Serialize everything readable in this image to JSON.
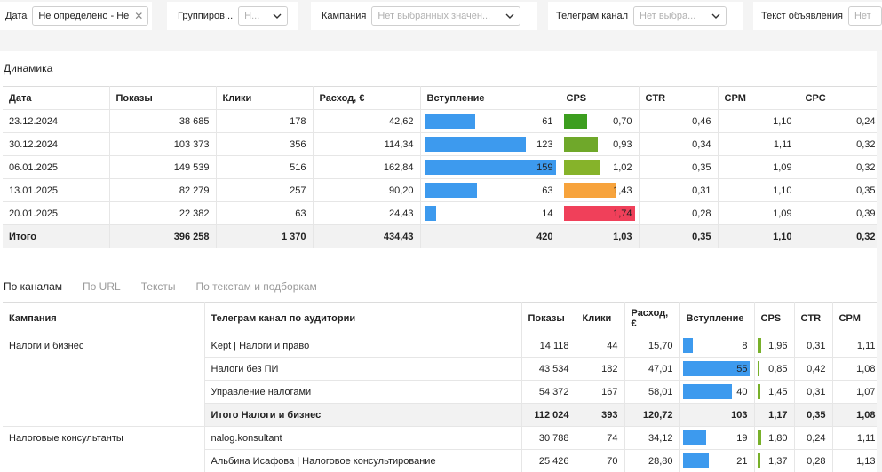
{
  "filters": {
    "date": {
      "label": "Дата",
      "value": "Не определено - Не"
    },
    "grouping": {
      "label": "Группиров...",
      "value": "Н..."
    },
    "campaign": {
      "label": "Кампания",
      "placeholder": "Нет выбранных значен..."
    },
    "telegram": {
      "label": "Телеграм канал",
      "placeholder": "Нет выбра..."
    },
    "adtext": {
      "label": "Текст объявления",
      "placeholder": "Нет"
    }
  },
  "dynamics": {
    "title": "Динамика",
    "headers": [
      "Дата",
      "Показы",
      "Клики",
      "Расход, €",
      "Вступление",
      "CPS",
      "CTR",
      "CPM",
      "CPC"
    ],
    "rows": [
      {
        "date": "23.12.2024",
        "shows": "38 685",
        "clicks": "178",
        "spend": "42,62",
        "joins": "61",
        "joins_value": 61,
        "cps": "0,70",
        "cps_color": "#3c9e1f",
        "cps_fill": 0.33,
        "ctr": "0,46",
        "cpm": "1,10",
        "cpc": "0,24"
      },
      {
        "date": "30.12.2024",
        "shows": "103 373",
        "clicks": "356",
        "spend": "114,34",
        "joins": "123",
        "joins_value": 123,
        "cps": "0,93",
        "cps_color": "#6fa82a",
        "cps_fill": 0.47,
        "ctr": "0,34",
        "cpm": "1,11",
        "cpc": "0,32"
      },
      {
        "date": "06.01.2025",
        "shows": "149 539",
        "clicks": "516",
        "spend": "162,84",
        "joins": "159",
        "joins_value": 159,
        "cps": "1,02",
        "cps_color": "#86b32a",
        "cps_fill": 0.51,
        "ctr": "0,35",
        "cpm": "1,09",
        "cpc": "0,32"
      },
      {
        "date": "13.01.2025",
        "shows": "82 279",
        "clicks": "257",
        "spend": "90,20",
        "joins": "63",
        "joins_value": 63,
        "cps": "1,43",
        "cps_color": "#f7a33c",
        "cps_fill": 0.74,
        "ctr": "0,31",
        "cpm": "1,10",
        "cpc": "0,35"
      },
      {
        "date": "20.01.2025",
        "shows": "22 382",
        "clicks": "63",
        "spend": "24,43",
        "joins": "14",
        "joins_value": 14,
        "cps": "1,74",
        "cps_color": "#f0405a",
        "cps_fill": 1.0,
        "ctr": "0,28",
        "cpm": "1,09",
        "cpc": "0,39"
      }
    ],
    "total": {
      "label": "Итого",
      "shows": "396 258",
      "clicks": "1 370",
      "spend": "434,43",
      "joins": "420",
      "cps": "1,03",
      "ctr": "0,35",
      "cpm": "1,10",
      "cpc": "0,32"
    }
  },
  "tabs": [
    "По каналам",
    "По URL",
    "Тексты",
    "По текстам и подборкам"
  ],
  "channels": {
    "headers": [
      "Кампания",
      "Телеграм канал по аудитории",
      "Показы",
      "Клики",
      "Расход, €",
      "Вступление",
      "CPS",
      "CTR",
      "CPM"
    ],
    "groups": [
      {
        "campaign": "Налоги и бизнес",
        "rows": [
          {
            "channel": "Kept | Налоги и право",
            "shows": "14 118",
            "clicks": "44",
            "spend": "15,70",
            "joins": "8",
            "joins_value": 8,
            "cps": "1,96",
            "cps_fill": 0.12,
            "ctr": "0,31",
            "cpm": "1,11"
          },
          {
            "channel": "Налоги без ПИ",
            "shows": "43 534",
            "clicks": "182",
            "spend": "47,01",
            "joins": "55",
            "joins_value": 55,
            "cps": "0,85",
            "cps_fill": 0.05,
            "ctr": "0,42",
            "cpm": "1,08"
          },
          {
            "channel": "Управление налогами",
            "shows": "54 372",
            "clicks": "167",
            "spend": "58,01",
            "joins": "40",
            "joins_value": 40,
            "cps": "1,45",
            "cps_fill": 0.09,
            "ctr": "0,31",
            "cpm": "1,07"
          }
        ],
        "subtotal": {
          "label": "Итого Налоги и бизнес",
          "shows": "112 024",
          "clicks": "393",
          "spend": "120,72",
          "joins": "103",
          "cps": "1,17",
          "ctr": "0,35",
          "cpm": "1,08"
        }
      },
      {
        "campaign": "Налоговые консультанты",
        "rows": [
          {
            "channel": "nalog.konsultant",
            "shows": "30 788",
            "clicks": "74",
            "spend": "34,12",
            "joins": "19",
            "joins_value": 19,
            "cps": "1,80",
            "cps_fill": 0.11,
            "ctr": "0,24",
            "cpm": "1,11"
          },
          {
            "channel": "Альбина Исафова | Налоговое консультирование",
            "shows": "25 426",
            "clicks": "70",
            "spend": "28,80",
            "joins": "21",
            "joins_value": 21,
            "cps": "1,37",
            "cps_fill": 0.08,
            "ctr": "0,28",
            "cpm": "1,13"
          }
        ]
      }
    ]
  },
  "colors": {
    "bar_blue": "#3d9aee",
    "cps_green": "#78b02a"
  }
}
